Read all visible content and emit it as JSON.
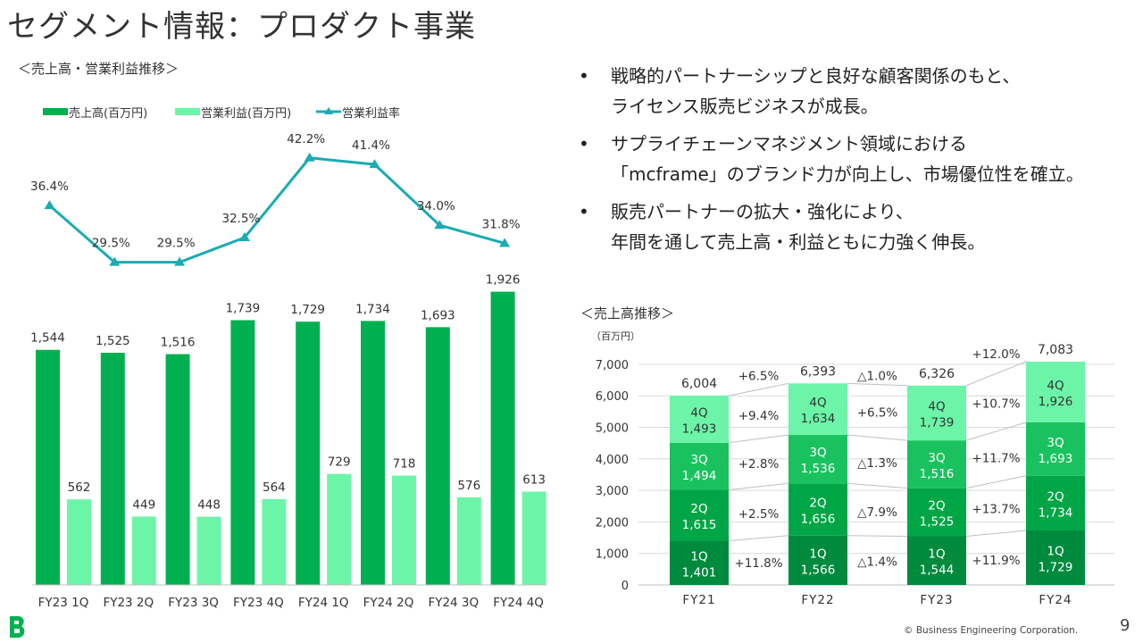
{
  "page": {
    "title": "セグメント情報：プロダクト事業",
    "left_subtitle": "＜売上高・営業利益推移＞",
    "right_subtitle": "＜売上高推移＞",
    "footer": "© Business Engineering Corporation.",
    "page_number": "9"
  },
  "bullets": [
    {
      "lines": [
        "戦略的パートナーシップと良好な顧客関係のもと、",
        "ライセンス販売ビジネスが成長。"
      ]
    },
    {
      "lines": [
        "サプライチェーンマネジメント領域における",
        "「mcframe」のブランド力が向上し、市場優位性を確立。"
      ]
    },
    {
      "lines": [
        "販売パートナーの拡大・強化により、",
        "年間を通して売上高・利益ともに力強く伸長。"
      ]
    }
  ],
  "bullet_marker": "•",
  "colors": {
    "sales": "#00b050",
    "profit": "#6cf5a8",
    "margin_line": "#1aabb3",
    "q1": "#008a3e",
    "q2": "#00a646",
    "q3": "#19c25e",
    "q4": "#6cf5a8",
    "grid": "#d9d9d9"
  },
  "chart_data": [
    {
      "type": "bar",
      "categories": [
        "FY23 1Q",
        "FY23 2Q",
        "FY23 3Q",
        "FY23 4Q",
        "FY24 1Q",
        "FY24 2Q",
        "FY24 3Q",
        "FY24 4Q"
      ],
      "series": [
        {
          "name": "売上高(百万円)",
          "kind": "bar",
          "values": [
            1544,
            1525,
            1516,
            1739,
            1729,
            1734,
            1693,
            1926
          ],
          "labels": [
            "1,544",
            "1,525",
            "1,516",
            "1,739",
            "1,729",
            "1,734",
            "1,693",
            "1,926"
          ]
        },
        {
          "name": "営業利益(百万円)",
          "kind": "bar",
          "values": [
            562,
            449,
            448,
            564,
            729,
            718,
            576,
            613
          ],
          "labels": [
            "562",
            "449",
            "448",
            "564",
            "729",
            "718",
            "576",
            "613"
          ]
        },
        {
          "name": "営業利益率",
          "kind": "line",
          "values": [
            36.4,
            29.5,
            29.5,
            32.5,
            42.2,
            41.4,
            34.0,
            31.8
          ],
          "labels": [
            "36.4%",
            "29.5%",
            "29.5%",
            "32.5%",
            "42.2%",
            "41.4%",
            "34.0%",
            "31.8%"
          ]
        }
      ],
      "legend": "top-left"
    },
    {
      "type": "bar",
      "stacked": true,
      "unit_label": "（百万円）",
      "categories": [
        "FY21",
        "FY22",
        "FY23",
        "FY24"
      ],
      "ylim": [
        0,
        7000
      ],
      "yticks": [
        "0",
        "1,000",
        "2,000",
        "3,000",
        "4,000",
        "5,000",
        "6,000",
        "7,000"
      ],
      "series": [
        {
          "name": "1Q",
          "values": [
            1401,
            1566,
            1544,
            1729
          ],
          "labels": [
            "1,401",
            "1,566",
            "1,544",
            "1,729"
          ]
        },
        {
          "name": "2Q",
          "values": [
            1615,
            1656,
            1525,
            1734
          ],
          "labels": [
            "1,615",
            "1,656",
            "1,525",
            "1,734"
          ]
        },
        {
          "name": "3Q",
          "values": [
            1494,
            1536,
            1516,
            1693
          ],
          "labels": [
            "1,494",
            "1,536",
            "1,516",
            "1,693"
          ]
        },
        {
          "name": "4Q",
          "values": [
            1493,
            1634,
            1739,
            1926
          ],
          "labels": [
            "1,493",
            "1,634",
            "1,739",
            "1,926"
          ]
        }
      ],
      "totals": [
        6004,
        6393,
        6326,
        7083
      ],
      "total_labels": [
        "6,004",
        "6,393",
        "6,326",
        "7,083"
      ],
      "growth": [
        {
          "total": "+6.5%",
          "q4": "+9.4%",
          "q3": "+2.8%",
          "q2": "+2.5%",
          "q1": "+11.8%"
        },
        {
          "total": "△1.0%",
          "q4": "+6.5%",
          "q3": "△1.3%",
          "q2": "△7.9%",
          "q1": "△1.4%"
        },
        {
          "total": "+12.0%",
          "q4": "+10.7%",
          "q3": "+11.7%",
          "q2": "+13.7%",
          "q1": "+11.9%"
        }
      ],
      "grid": true
    }
  ]
}
